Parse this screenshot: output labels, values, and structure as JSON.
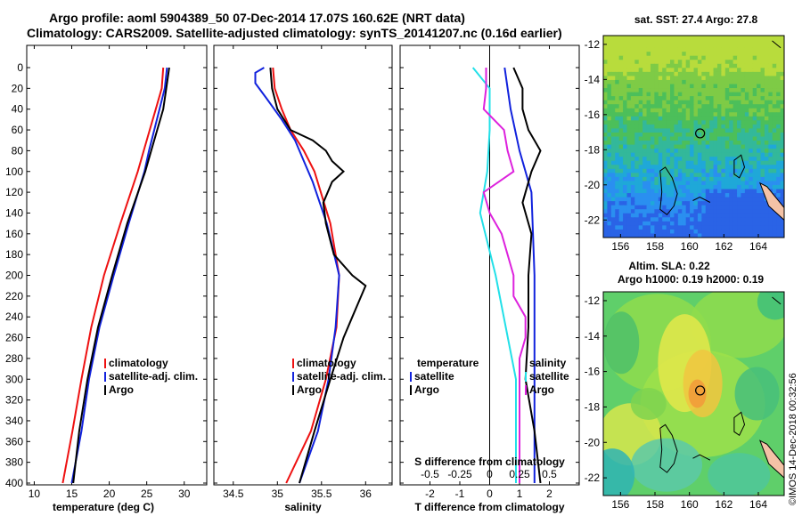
{
  "header": {
    "title_line1": "Argo profile: aoml 5904389_50 07-Dec-2014 17.07S 160.62E (NRT data)",
    "title_line2": "Climatology: CARS2009. Satellite-adjusted climatology: synTS_20141207.nc (0.16d earlier)"
  },
  "credit": "©IMOS 14-Dec-2018 00:32:56",
  "colors": {
    "climatology": "#ee1111",
    "satellite": "#1122dd",
    "argo": "#000000",
    "salinity_diff": "#dd22dd",
    "cyan": "#22e0e8",
    "coast": "#000000",
    "island": "#f4c2a6"
  },
  "chart_data": [
    {
      "type": "line",
      "name": "temperature-panel",
      "xlabel": "temperature (deg C)",
      "ylabel": "depth",
      "xlim": [
        9,
        33
      ],
      "ylim": [
        400,
        0
      ],
      "xticks": [
        10,
        15,
        20,
        25,
        30
      ],
      "xtick_labels": [
        "10",
        "15",
        "20",
        "25",
        "30"
      ],
      "yticks": [
        0,
        20,
        40,
        60,
        80,
        100,
        120,
        140,
        160,
        180,
        200,
        220,
        240,
        260,
        280,
        300,
        320,
        340,
        360,
        380,
        400
      ],
      "ytick_labels": [
        "0",
        "20",
        "40",
        "60",
        "80",
        "100",
        "120",
        "140",
        "160",
        "180",
        "200",
        "220",
        "240",
        "260",
        "280",
        "300",
        "320",
        "340",
        "360",
        "380",
        "400"
      ],
      "legend": [
        "climatology",
        "satellite-adj. clim.",
        "Argo"
      ],
      "series": [
        {
          "name": "climatology",
          "color": "#ee1111",
          "depth": [
            0,
            20,
            40,
            60,
            80,
            100,
            150,
            200,
            250,
            300,
            350,
            400
          ],
          "values": [
            27.2,
            27.0,
            26.2,
            25.4,
            24.6,
            23.8,
            21.5,
            19.3,
            17.6,
            16.3,
            15.1,
            13.8
          ]
        },
        {
          "name": "satellite-adj. clim.",
          "color": "#1122dd",
          "depth": [
            0,
            20,
            40,
            60,
            80,
            100,
            150,
            200,
            250,
            300,
            350,
            400
          ],
          "values": [
            27.7,
            27.4,
            26.7,
            26.0,
            25.3,
            24.7,
            22.6,
            20.6,
            18.7,
            17.3,
            16.3,
            15.0
          ]
        },
        {
          "name": "Argo",
          "color": "#000000",
          "depth": [
            0,
            20,
            40,
            60,
            80,
            100,
            150,
            200,
            250,
            300,
            350,
            400
          ],
          "values": [
            28.0,
            27.6,
            27.2,
            26.4,
            25.6,
            24.8,
            22.4,
            20.4,
            18.5,
            17.1,
            16.0,
            15.2
          ]
        }
      ]
    },
    {
      "type": "line",
      "name": "salinity-panel",
      "xlabel": "salinity",
      "ylabel": "depth",
      "xlim": [
        34.28,
        36.3
      ],
      "ylim": [
        400,
        0
      ],
      "xticks": [
        34.5,
        35,
        35.5,
        36
      ],
      "xtick_labels": [
        "34.5",
        "35",
        "35.5",
        "36"
      ],
      "legend": [
        "climatology",
        "satellite-adj. clim.",
        "Argo"
      ],
      "series": [
        {
          "name": "climatology",
          "color": "#ee1111",
          "depth": [
            0,
            20,
            40,
            60,
            80,
            100,
            150,
            200,
            250,
            300,
            350,
            400
          ],
          "values": [
            34.95,
            34.97,
            35.05,
            35.15,
            35.3,
            35.42,
            35.6,
            35.7,
            35.67,
            35.55,
            35.38,
            35.1
          ]
        },
        {
          "name": "satellite-adj. clim.",
          "color": "#1122dd",
          "depth": [
            0,
            5,
            15,
            30,
            50,
            70,
            90,
            110,
            150,
            200,
            250,
            300,
            350,
            400
          ],
          "values": [
            34.85,
            34.75,
            34.75,
            34.88,
            35.05,
            35.2,
            35.3,
            35.4,
            35.56,
            35.7,
            35.66,
            35.58,
            35.46,
            35.25
          ]
        },
        {
          "name": "Argo",
          "color": "#000000",
          "depth": [
            0,
            20,
            40,
            60,
            70,
            80,
            90,
            100,
            110,
            130,
            150,
            180,
            200,
            210,
            220,
            240,
            260,
            300,
            350,
            400
          ],
          "values": [
            34.92,
            34.94,
            35.0,
            35.15,
            35.4,
            35.55,
            35.62,
            35.75,
            35.62,
            35.52,
            35.55,
            35.64,
            35.85,
            36.0,
            35.95,
            35.85,
            35.75,
            35.6,
            35.42,
            35.25
          ]
        }
      ]
    },
    {
      "type": "line",
      "name": "difference-panel",
      "xlabel": "T difference from climatology",
      "xlabel2": "S difference from climatology",
      "xlim": [
        -3,
        3
      ],
      "ylim": [
        400,
        0
      ],
      "xticks": [
        -2,
        -1,
        0,
        1,
        2
      ],
      "xtick_labels": [
        "-2",
        "-1",
        "0",
        "1",
        "2"
      ],
      "xticks_s": [
        -0.5,
        -0.25,
        0,
        0.25,
        0.5
      ],
      "xtick_labels_s": [
        "-0.5",
        "-0.25",
        "0",
        "0.25",
        "0.5"
      ],
      "legend_temperature": [
        "temperature",
        "satellite",
        "Argo"
      ],
      "legend_salinity": [
        "salinity",
        "satellite",
        "Argo"
      ],
      "series": [
        {
          "name": "T satellite",
          "color": "#1122dd",
          "depth": [
            0,
            40,
            80,
            120,
            200,
            300,
            400
          ],
          "values": [
            0.5,
            0.7,
            1.0,
            1.4,
            1.5,
            1.5,
            1.5
          ]
        },
        {
          "name": "T Argo",
          "color": "#000000",
          "depth": [
            0,
            20,
            40,
            60,
            80,
            100,
            130,
            160,
            200,
            250,
            300,
            350,
            400
          ],
          "values": [
            0.8,
            1.1,
            1.1,
            1.3,
            1.7,
            1.4,
            1.1,
            1.4,
            1.3,
            1.3,
            1.2,
            1.5,
            1.7
          ]
        },
        {
          "name": "S satellite",
          "color": "#22e0e8",
          "depth": [
            0,
            20,
            60,
            100,
            140,
            200,
            300,
            400
          ],
          "values": [
            -0.14,
            0.0,
            0.0,
            -0.02,
            -0.08,
            0.05,
            0.22,
            0.22
          ]
        },
        {
          "name": "S Argo",
          "color": "#dd22dd",
          "depth": [
            0,
            20,
            40,
            60,
            80,
            100,
            120,
            140,
            160,
            180,
            200,
            220,
            240,
            260,
            280,
            300,
            340,
            380,
            400
          ],
          "values": [
            -0.03,
            -0.03,
            -0.05,
            0.12,
            0.15,
            0.2,
            -0.05,
            0.0,
            0.1,
            0.15,
            0.2,
            0.2,
            0.3,
            0.3,
            0.25,
            0.25,
            0.25,
            0.25,
            0.25
          ]
        }
      ]
    },
    {
      "type": "heatmap",
      "name": "sst-map",
      "title": "sat. SST: 27.4 Argo: 27.8",
      "xlim": [
        155,
        165.5
      ],
      "ylim": [
        -23,
        -11.5
      ],
      "xticks": [
        156,
        158,
        160,
        162,
        164
      ],
      "xtick_labels": [
        "156",
        "158",
        "160",
        "162",
        "164"
      ],
      "yticks": [
        -12,
        -14,
        -16,
        -18,
        -20,
        -22
      ],
      "ytick_labels": [
        "-12",
        "-14",
        "-16",
        "-18",
        "-20",
        "-22"
      ],
      "float_position": [
        160.62,
        -17.07
      ]
    },
    {
      "type": "heatmap",
      "name": "sla-map",
      "title": "Altim. SLA: 0.22",
      "subtitle": "Argo h1000: 0.19 h2000: 0.19",
      "xlim": [
        155,
        165.5
      ],
      "ylim": [
        -23,
        -11.5
      ],
      "xticks": [
        156,
        158,
        160,
        162,
        164
      ],
      "xtick_labels": [
        "156",
        "158",
        "160",
        "162",
        "164"
      ],
      "yticks": [
        -12,
        -14,
        -16,
        -18,
        -20,
        -22
      ],
      "ytick_labels": [
        "-12",
        "-14",
        "-16",
        "-18",
        "-20",
        "-22"
      ],
      "float_position": [
        160.62,
        -17.07
      ]
    }
  ]
}
